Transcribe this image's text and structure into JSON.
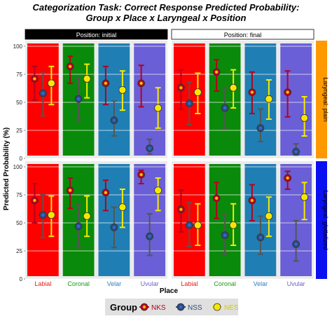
{
  "chart_data": {
    "type": "scatter",
    "title": "Categorization Task: Correct Response Predicted Probability:",
    "subtitle": "Group x Place x Laryngeal x Position",
    "xlabel": "Place",
    "ylabel": "Predicted Probability (%)",
    "ylim": [
      0,
      105
    ],
    "yticks": [
      0,
      25,
      50,
      75,
      100
    ],
    "grid": true,
    "categories": [
      "Labial",
      "Coronal",
      "Velar",
      "Uvular"
    ],
    "category_colors": [
      "#ff0000",
      "#0a8a0a",
      "#1f7fb4",
      "#6a5fd6"
    ],
    "category_label_colors": [
      "#e0201a",
      "#1a9a1a",
      "#2a80c0",
      "#7060d0"
    ],
    "column_strips": [
      "Position: initial",
      "Position: final"
    ],
    "row_strips": [
      "Laryngeal: plain",
      "Laryngeal: glottalized"
    ],
    "row_strip_colors": [
      "#ff9900",
      "#0a10f0"
    ],
    "legend": {
      "title": "Group",
      "position": "bottom"
    },
    "series": [
      {
        "name": "NKS",
        "color": "#b8001c",
        "inner": "#f2c200"
      },
      {
        "name": "NSS",
        "color": "#2e4a7a",
        "inner": "#2a6bd6"
      },
      {
        "name": "NES",
        "color": "#f5ea00",
        "inner": "#ffe000"
      }
    ],
    "panels": [
      {
        "position": "initial",
        "laryngeal": "plain",
        "points": [
          {
            "series": "NKS",
            "category": "Labial",
            "y": 71,
            "lo": 52,
            "hi": 82
          },
          {
            "series": "NSS",
            "category": "Labial",
            "y": 58,
            "lo": 38,
            "hi": 76
          },
          {
            "series": "NES",
            "category": "Labial",
            "y": 67,
            "lo": 48,
            "hi": 82
          },
          {
            "series": "NKS",
            "category": "Coronal",
            "y": 82,
            "lo": 67,
            "hi": 91
          },
          {
            "series": "NSS",
            "category": "Coronal",
            "y": 53,
            "lo": 34,
            "hi": 72
          },
          {
            "series": "NES",
            "category": "Coronal",
            "y": 71,
            "lo": 54,
            "hi": 84
          },
          {
            "series": "NKS",
            "category": "Velar",
            "y": 67,
            "lo": 48,
            "hi": 82
          },
          {
            "series": "NSS",
            "category": "Velar",
            "y": 34,
            "lo": 20,
            "hi": 51
          },
          {
            "series": "NES",
            "category": "Velar",
            "y": 61,
            "lo": 43,
            "hi": 78
          },
          {
            "series": "NKS",
            "category": "Uvular",
            "y": 67,
            "lo": 46,
            "hi": 83
          },
          {
            "series": "NSS",
            "category": "Uvular",
            "y": 9,
            "lo": 4,
            "hi": 17
          },
          {
            "series": "NES",
            "category": "Uvular",
            "y": 45,
            "lo": 27,
            "hi": 63
          }
        ]
      },
      {
        "position": "final",
        "laryngeal": "plain",
        "points": [
          {
            "series": "NKS",
            "category": "Labial",
            "y": 63,
            "lo": 44,
            "hi": 79
          },
          {
            "series": "NSS",
            "category": "Labial",
            "y": 49,
            "lo": 30,
            "hi": 68
          },
          {
            "series": "NES",
            "category": "Labial",
            "y": 59,
            "lo": 40,
            "hi": 76
          },
          {
            "series": "NKS",
            "category": "Coronal",
            "y": 77,
            "lo": 60,
            "hi": 88
          },
          {
            "series": "NSS",
            "category": "Coronal",
            "y": 45,
            "lo": 27,
            "hi": 63
          },
          {
            "series": "NES",
            "category": "Coronal",
            "y": 63,
            "lo": 45,
            "hi": 79
          },
          {
            "series": "NKS",
            "category": "Velar",
            "y": 59,
            "lo": 40,
            "hi": 77
          },
          {
            "series": "NSS",
            "category": "Velar",
            "y": 27,
            "lo": 15,
            "hi": 44
          },
          {
            "series": "NES",
            "category": "Velar",
            "y": 53,
            "lo": 35,
            "hi": 70
          },
          {
            "series": "NKS",
            "category": "Uvular",
            "y": 59,
            "lo": 37,
            "hi": 78
          },
          {
            "series": "NSS",
            "category": "Uvular",
            "y": 6,
            "lo": 3,
            "hi": 13
          },
          {
            "series": "NES",
            "category": "Uvular",
            "y": 36,
            "lo": 20,
            "hi": 55
          }
        ]
      },
      {
        "position": "initial",
        "laryngeal": "glottalized",
        "points": [
          {
            "series": "NKS",
            "category": "Labial",
            "y": 70,
            "lo": 50,
            "hi": 85
          },
          {
            "series": "NSS",
            "category": "Labial",
            "y": 57,
            "lo": 37,
            "hi": 75
          },
          {
            "series": "NES",
            "category": "Labial",
            "y": 57,
            "lo": 38,
            "hi": 74
          },
          {
            "series": "NKS",
            "category": "Coronal",
            "y": 79,
            "lo": 63,
            "hi": 90
          },
          {
            "series": "NSS",
            "category": "Coronal",
            "y": 47,
            "lo": 29,
            "hi": 66
          },
          {
            "series": "NES",
            "category": "Coronal",
            "y": 56,
            "lo": 38,
            "hi": 74
          },
          {
            "series": "NKS",
            "category": "Velar",
            "y": 77,
            "lo": 61,
            "hi": 88
          },
          {
            "series": "NSS",
            "category": "Velar",
            "y": 46,
            "lo": 28,
            "hi": 64
          },
          {
            "series": "NES",
            "category": "Velar",
            "y": 64,
            "lo": 46,
            "hi": 80
          },
          {
            "series": "NKS",
            "category": "Uvular",
            "y": 93,
            "lo": 85,
            "hi": 97
          },
          {
            "series": "NSS",
            "category": "Uvular",
            "y": 38,
            "lo": 21,
            "hi": 58
          },
          {
            "series": "NES",
            "category": "Uvular",
            "y": 79,
            "lo": 61,
            "hi": 90
          }
        ]
      },
      {
        "position": "final",
        "laryngeal": "glottalized",
        "points": [
          {
            "series": "NKS",
            "category": "Labial",
            "y": 62,
            "lo": 42,
            "hi": 79
          },
          {
            "series": "NSS",
            "category": "Labial",
            "y": 48,
            "lo": 29,
            "hi": 68
          },
          {
            "series": "NES",
            "category": "Labial",
            "y": 48,
            "lo": 30,
            "hi": 67
          },
          {
            "series": "NKS",
            "category": "Coronal",
            "y": 72,
            "lo": 54,
            "hi": 86
          },
          {
            "series": "NSS",
            "category": "Coronal",
            "y": 39,
            "lo": 22,
            "hi": 58
          },
          {
            "series": "NES",
            "category": "Coronal",
            "y": 48,
            "lo": 30,
            "hi": 67
          },
          {
            "series": "NKS",
            "category": "Velar",
            "y": 70,
            "lo": 52,
            "hi": 84
          },
          {
            "series": "NSS",
            "category": "Velar",
            "y": 37,
            "lo": 22,
            "hi": 56
          },
          {
            "series": "NES",
            "category": "Velar",
            "y": 56,
            "lo": 38,
            "hi": 73
          },
          {
            "series": "NKS",
            "category": "Uvular",
            "y": 90,
            "lo": 80,
            "hi": 96
          },
          {
            "series": "NSS",
            "category": "Uvular",
            "y": 31,
            "lo": 16,
            "hi": 52
          },
          {
            "series": "NES",
            "category": "Uvular",
            "y": 73,
            "lo": 53,
            "hi": 86
          }
        ]
      }
    ]
  }
}
